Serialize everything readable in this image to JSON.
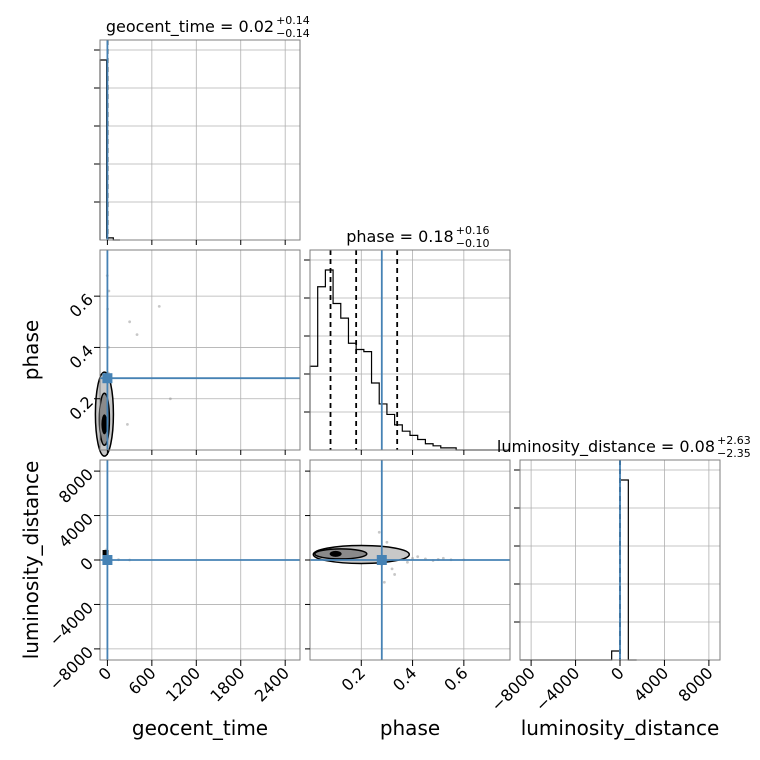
{
  "chart_data": {
    "type": "corner",
    "parameters": [
      "geocent_time",
      "phase",
      "luminosity_distance"
    ],
    "truth_color": "#4682b4",
    "titles": [
      {
        "param": "geocent_time",
        "text": "geocent_time = 0.02",
        "plus": "+0.14",
        "minus": "−0.14"
      },
      {
        "param": "phase",
        "text": "phase = 0.18",
        "plus": "+0.16",
        "minus": "−0.10"
      },
      {
        "param": "luminosity_distance",
        "text": "luminosity_distance = 0.08",
        "plus": "+2.63",
        "minus": "−2.35"
      }
    ],
    "axes": {
      "geocent_time": {
        "label": "geocent_time",
        "range": [
          -100,
          2600
        ],
        "ticks": [
          0,
          600,
          1200,
          1800,
          2400
        ],
        "tick_labels": [
          "0",
          "600",
          "1200",
          "1800",
          "2400"
        ],
        "truth": 0,
        "quantiles": [
          -0.12,
          0.02,
          0.16
        ]
      },
      "phase": {
        "label": "phase",
        "range": [
          0.0,
          0.78
        ],
        "ticks": [
          0.2,
          0.4,
          0.6
        ],
        "tick_labels": [
          "0.2",
          "0.4",
          "0.6"
        ],
        "truth": 0.28,
        "quantiles": [
          0.08,
          0.18,
          0.34
        ]
      },
      "luminosity_distance": {
        "label": "luminosity_distance",
        "range": [
          -9000,
          9000
        ],
        "ticks": [
          -8000,
          -4000,
          0,
          4000,
          8000
        ],
        "tick_labels": [
          "−8000",
          "−4000",
          "0",
          "4000",
          "8000"
        ],
        "truth": 0,
        "quantiles": [
          -2.27,
          0.08,
          2.71
        ]
      }
    },
    "histograms": {
      "geocent_time": {
        "bin_edges": [
          -100,
          -10,
          80,
          170
        ],
        "counts": [
          5000,
          60,
          0
        ]
      },
      "phase": {
        "bin_edges": [
          0.0,
          0.03,
          0.06,
          0.09,
          0.12,
          0.15,
          0.18,
          0.21,
          0.24,
          0.27,
          0.3,
          0.33,
          0.36,
          0.39,
          0.42,
          0.45,
          0.48,
          0.51,
          0.54,
          0.57,
          0.6,
          0.63,
          0.66,
          0.69,
          0.72,
          0.75,
          0.78
        ],
        "counts": [
          200,
          390,
          430,
          350,
          315,
          255,
          240,
          235,
          160,
          110,
          85,
          60,
          45,
          35,
          25,
          15,
          10,
          5,
          5,
          0,
          0,
          0,
          0,
          0,
          0,
          0
        ]
      },
      "luminosity_distance": {
        "bin_edges": [
          -9000,
          -8250,
          -7500,
          -6750,
          -6000,
          -5250,
          -4500,
          -3750,
          -3000,
          -2250,
          -1500,
          -750,
          0,
          750,
          1500
        ],
        "counts": [
          0,
          0,
          0,
          0,
          0,
          0,
          0,
          0,
          0,
          0,
          0,
          200,
          4000,
          0
        ]
      }
    },
    "scatter_samples": {
      "phase_vs_geocent_time": [
        [
          5,
          0.1
        ],
        [
          8,
          0.15
        ],
        [
          -5,
          0.22
        ],
        [
          12,
          0.3
        ],
        [
          -3,
          0.05
        ],
        [
          10,
          0.12
        ],
        [
          15,
          0.4
        ],
        [
          -8,
          0.18
        ],
        [
          300,
          0.5
        ],
        [
          700,
          0.56
        ],
        [
          270,
          0.1
        ],
        [
          850,
          0.2
        ],
        [
          400,
          0.45
        ],
        [
          20,
          0.62
        ],
        [
          -2,
          0.68
        ],
        [
          3,
          0.55
        ]
      ],
      "luminosity_distance_vs_geocent_time": [
        [
          5,
          100
        ],
        [
          -5,
          -50
        ],
        [
          10,
          200
        ],
        [
          0,
          800
        ],
        [
          -20,
          900
        ],
        [
          300,
          0
        ],
        [
          150,
          30
        ]
      ],
      "luminosity_distance_vs_phase": [
        [
          0.05,
          600
        ],
        [
          0.1,
          500
        ],
        [
          0.15,
          700
        ],
        [
          0.2,
          400
        ],
        [
          0.25,
          300
        ],
        [
          0.3,
          1600
        ],
        [
          0.35,
          200
        ],
        [
          0.4,
          150
        ],
        [
          0.45,
          100
        ],
        [
          0.5,
          50
        ],
        [
          0.55,
          20
        ],
        [
          0.6,
          10
        ],
        [
          0.28,
          -400
        ],
        [
          0.32,
          -800
        ],
        [
          0.22,
          1200
        ],
        [
          0.38,
          -200
        ],
        [
          0.42,
          300
        ],
        [
          0.18,
          -100
        ],
        [
          0.12,
          900
        ],
        [
          0.48,
          -50
        ],
        [
          0.52,
          150
        ],
        [
          0.27,
          2500
        ],
        [
          0.33,
          -1300
        ],
        [
          0.29,
          -2000
        ]
      ]
    }
  }
}
